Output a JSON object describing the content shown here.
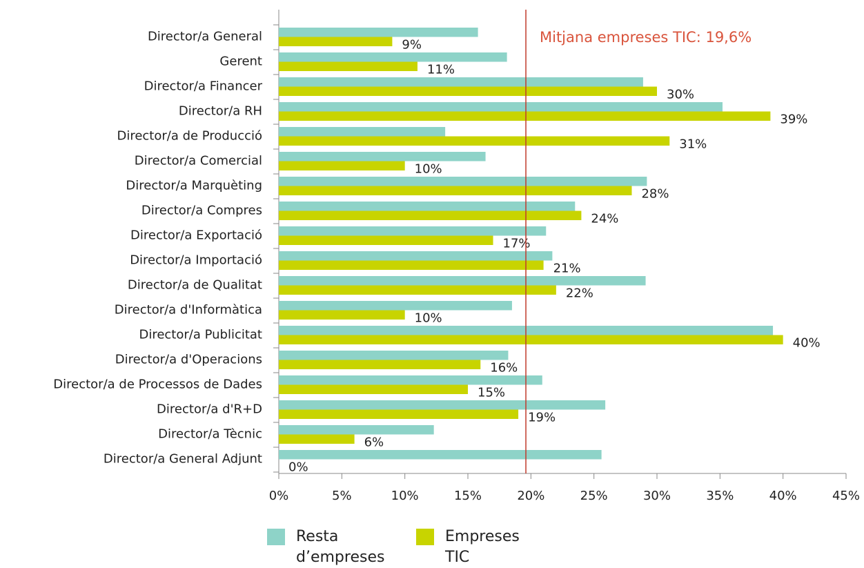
{
  "chart_data": {
    "type": "barh",
    "categories": [
      "Director/a General",
      "Gerent",
      "Director/a Financer",
      "Director/a RH",
      "Director/a de Producció",
      "Director/a Comercial",
      "Director/a Marquèting",
      "Director/a Compres",
      "Director/a Exportació",
      "Director/a Importació",
      "Director/a de Qualitat",
      "Director/a d'Informàtica",
      "Director/a Publicitat",
      "Director/a d'Operacions",
      "Director/a de Processos de Dades",
      "Director/a d'R+D",
      "Director/a Tècnic",
      "Director/a General Adjunt"
    ],
    "series": [
      {
        "name": "Resta d’empreses",
        "color": "#8ed3c8",
        "values": [
          15.8,
          18.1,
          28.9,
          35.2,
          13.2,
          16.4,
          29.2,
          23.5,
          21.2,
          21.7,
          29.1,
          18.5,
          39.2,
          18.2,
          20.9,
          25.9,
          12.3,
          25.6
        ]
      },
      {
        "name": "Empreses TIC",
        "color": "#c8d400",
        "values": [
          9,
          11,
          30,
          39,
          31,
          10,
          28,
          24,
          17,
          21,
          22,
          10,
          40,
          16,
          15,
          19,
          6,
          0
        ],
        "value_labels": [
          "9%",
          "11%",
          "30%",
          "39%",
          "31%",
          "10%",
          "28%",
          "24%",
          "17%",
          "21%",
          "22%",
          "10%",
          "40%",
          "16%",
          "15%",
          "19%",
          "6%",
          "0%"
        ]
      }
    ],
    "xlim": [
      0,
      45
    ],
    "xticks": [
      {
        "value": 0,
        "label": "0%"
      },
      {
        "value": 5,
        "label": "5%"
      },
      {
        "value": 10,
        "label": "10%"
      },
      {
        "value": 15,
        "label": "15%"
      },
      {
        "value": 20,
        "label": "20%"
      },
      {
        "value": 25,
        "label": "25%"
      },
      {
        "value": 30,
        "label": "30%"
      },
      {
        "value": 35,
        "label": "35%"
      },
      {
        "value": 40,
        "label": "40%"
      },
      {
        "value": 45,
        "label": "45%"
      }
    ],
    "reference_line": {
      "value": 19.6,
      "label": "Mitjana empreses TIC: 19,6%",
      "color": "#c0392b"
    },
    "legend": "bottom"
  }
}
